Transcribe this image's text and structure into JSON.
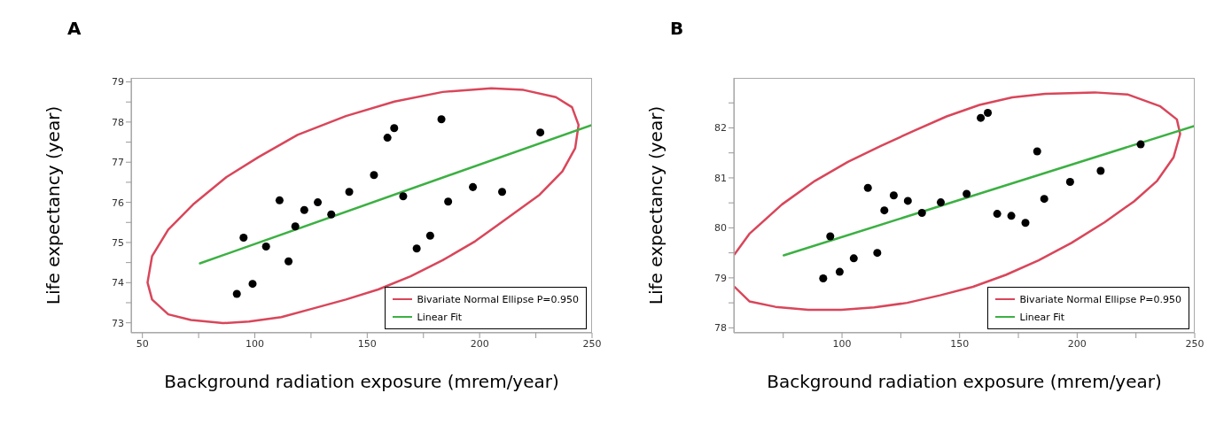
{
  "chart_data": [
    {
      "type": "scatter",
      "title": "A",
      "xlabel": "Background radiation exposure (mrem/year)",
      "ylabel": "Life expectancy (year)",
      "xlim": [
        45,
        250
      ],
      "ylim": [
        72.75,
        79.1
      ],
      "xticks": [
        50,
        {
          "value": 75,
          "label": null
        },
        100,
        {
          "value": 125,
          "label": null
        },
        150,
        {
          "value": 175,
          "label": null
        },
        200,
        {
          "value": 225,
          "label": null
        },
        250
      ],
      "yticks": [
        73,
        {
          "value": 73.5,
          "label": null
        },
        74,
        {
          "value": 74.5,
          "label": null
        },
        75,
        {
          "value": 75.5,
          "label": null
        },
        76,
        {
          "value": 76.5,
          "label": null
        },
        77,
        {
          "value": 77.5,
          "label": null
        },
        78,
        {
          "value": 78.5,
          "label": null
        },
        79
      ],
      "legend": "bottom right",
      "marker": "circle",
      "grid": false,
      "series": [
        {
          "color": "#000000",
          "x": [
            92,
            95,
            99,
            105,
            111,
            115,
            118,
            122,
            128,
            134,
            142,
            153,
            159,
            162,
            166,
            172,
            178,
            183,
            186,
            197,
            210,
            227
          ],
          "values": [
            73.72,
            75.12,
            73.97,
            74.9,
            76.05,
            74.53,
            75.4,
            75.81,
            76.0,
            75.7,
            76.26,
            76.68,
            77.61,
            77.85,
            76.15,
            74.85,
            75.17,
            78.07,
            76.02,
            76.38,
            76.26,
            77.74
          ]
        },
        {
          "type": "line",
          "marker": "none",
          "name": "Bivariate Normal Ellipse P=0.950",
          "color": "#d9465a",
          "x": [
            52.3,
            54.3,
            61.5,
            73.0,
            87.4,
            101.7,
            119.0,
            140.5,
            162.1,
            183.6,
            205.2,
            219.5,
            233.9,
            241.1,
            244.0,
            242.5,
            236.8,
            226.7,
            212.4,
            198.0,
            183.6,
            169.3,
            154.9,
            140.5,
            126.1,
            111.8,
            97.4,
            85.9,
            71.6,
            61.5,
            54.3,
            52.3
          ],
          "values": [
            74.01,
            74.66,
            75.32,
            75.97,
            76.63,
            77.13,
            77.68,
            78.15,
            78.51,
            78.75,
            78.84,
            78.8,
            78.62,
            78.37,
            77.93,
            77.35,
            76.77,
            76.19,
            75.61,
            75.03,
            74.56,
            74.16,
            73.83,
            73.58,
            73.36,
            73.14,
            73.03,
            72.99,
            73.07,
            73.21,
            73.58,
            74.0
          ]
        },
        {
          "type": "line",
          "marker": "none",
          "name": "Linear Fit",
          "color": "#3cb043",
          "x": [
            75.6,
            250
          ],
          "values": [
            74.48,
            77.93
          ]
        }
      ]
    },
    {
      "type": "scatter",
      "title": "B",
      "xlabel": "Background radiation exposure (mrem/year)",
      "ylabel": "Life expectancy (year)",
      "xlim": [
        54,
        250
      ],
      "ylim": [
        77.9,
        83
      ],
      "xticks": [
        {
          "value": 75,
          "label": null
        },
        100,
        {
          "value": 125,
          "label": null
        },
        150,
        {
          "value": 175,
          "label": null
        },
        200,
        {
          "value": 225,
          "label": null
        },
        250
      ],
      "yticks": [
        78,
        {
          "value": 78.5,
          "label": null
        },
        79,
        {
          "value": 79.5,
          "label": null
        },
        80,
        {
          "value": 80.5,
          "label": null
        },
        81,
        {
          "value": 81.5,
          "label": null
        },
        82,
        {
          "value": 82.5,
          "label": null
        }
      ],
      "legend": "bottom right",
      "marker": "circle",
      "grid": false,
      "series": [
        {
          "color": "#000000",
          "x": [
            92,
            95,
            99,
            105,
            111,
            115,
            118,
            122,
            128,
            134,
            142,
            153,
            159,
            162,
            166,
            172,
            178,
            183,
            186,
            197,
            210,
            227
          ],
          "values": [
            78.99,
            79.83,
            79.12,
            79.39,
            80.8,
            79.5,
            80.35,
            80.65,
            80.54,
            80.3,
            80.51,
            80.68,
            82.2,
            82.3,
            80.28,
            80.24,
            80.1,
            81.53,
            80.58,
            80.92,
            81.14,
            81.67
          ]
        },
        {
          "type": "line",
          "marker": "none",
          "name": "Bivariate Normal Ellipse P=0.950",
          "color": "#d9465a",
          "x": [
            54.3,
            60.6,
            74.5,
            88.5,
            102.5,
            116.5,
            130.5,
            144.5,
            158.5,
            172.4,
            186.4,
            207.4,
            221.4,
            235.4,
            242.4,
            243.8,
            241.0,
            234.0,
            224.2,
            211.6,
            197.6,
            183.6,
            169.7,
            155.7,
            141.7,
            127.7,
            113.7,
            99.7,
            85.7,
            71.7,
            60.6,
            54.3
          ],
          "values": [
            79.47,
            79.88,
            80.47,
            80.94,
            81.32,
            81.64,
            81.94,
            82.23,
            82.46,
            82.61,
            82.68,
            82.71,
            82.67,
            82.43,
            82.17,
            81.88,
            81.41,
            80.94,
            80.53,
            80.11,
            79.7,
            79.35,
            79.06,
            78.82,
            78.65,
            78.5,
            78.41,
            78.36,
            78.36,
            78.42,
            78.53,
            78.82
          ]
        },
        {
          "type": "line",
          "marker": "none",
          "name": "Linear Fit",
          "color": "#3cb043",
          "x": [
            75.2,
            250
          ],
          "values": [
            79.45,
            82.04
          ]
        }
      ]
    }
  ]
}
